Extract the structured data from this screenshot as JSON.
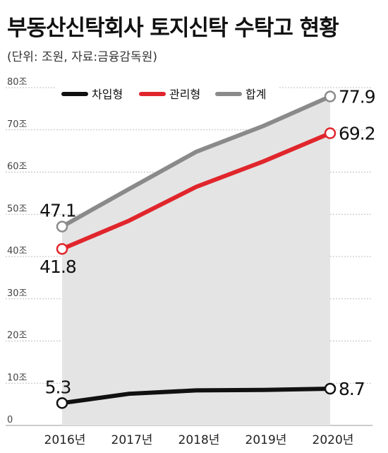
{
  "chart_data": {
    "type": "line",
    "title": "부동산신탁회사 토지신탁 수탁고 현황",
    "subtitle": "(단위: 조원, 자료:금융감독원)",
    "x": [
      "2016년",
      "2017년",
      "2018년",
      "2019년",
      "2020년"
    ],
    "y_ticks": [
      "0",
      "10조",
      "20조",
      "30조",
      "40조",
      "50조",
      "60조",
      "70조",
      "80조"
    ],
    "ylim": [
      0,
      80
    ],
    "grid": true,
    "legend_position": "top",
    "series": [
      {
        "name": "차입형",
        "color": "#111111",
        "values": [
          5.3,
          7.5,
          8.3,
          8.4,
          8.7
        ]
      },
      {
        "name": "관리형",
        "color": "#e0262c",
        "values": [
          41.8,
          48.5,
          56.5,
          62.5,
          69.2
        ]
      },
      {
        "name": "합계",
        "color": "#8a8a8a",
        "values": [
          47.1,
          56.0,
          64.8,
          70.9,
          77.9
        ]
      }
    ],
    "data_labels": [
      {
        "series": 2,
        "index": 0,
        "text": "47.1"
      },
      {
        "series": 2,
        "index": 4,
        "text": "77.9"
      },
      {
        "series": 1,
        "index": 0,
        "text": "41.8"
      },
      {
        "series": 1,
        "index": 4,
        "text": "69.2"
      },
      {
        "series": 0,
        "index": 0,
        "text": "5.3"
      },
      {
        "series": 0,
        "index": 4,
        "text": "8.7"
      }
    ],
    "area_fill": "#e4e4e4"
  }
}
